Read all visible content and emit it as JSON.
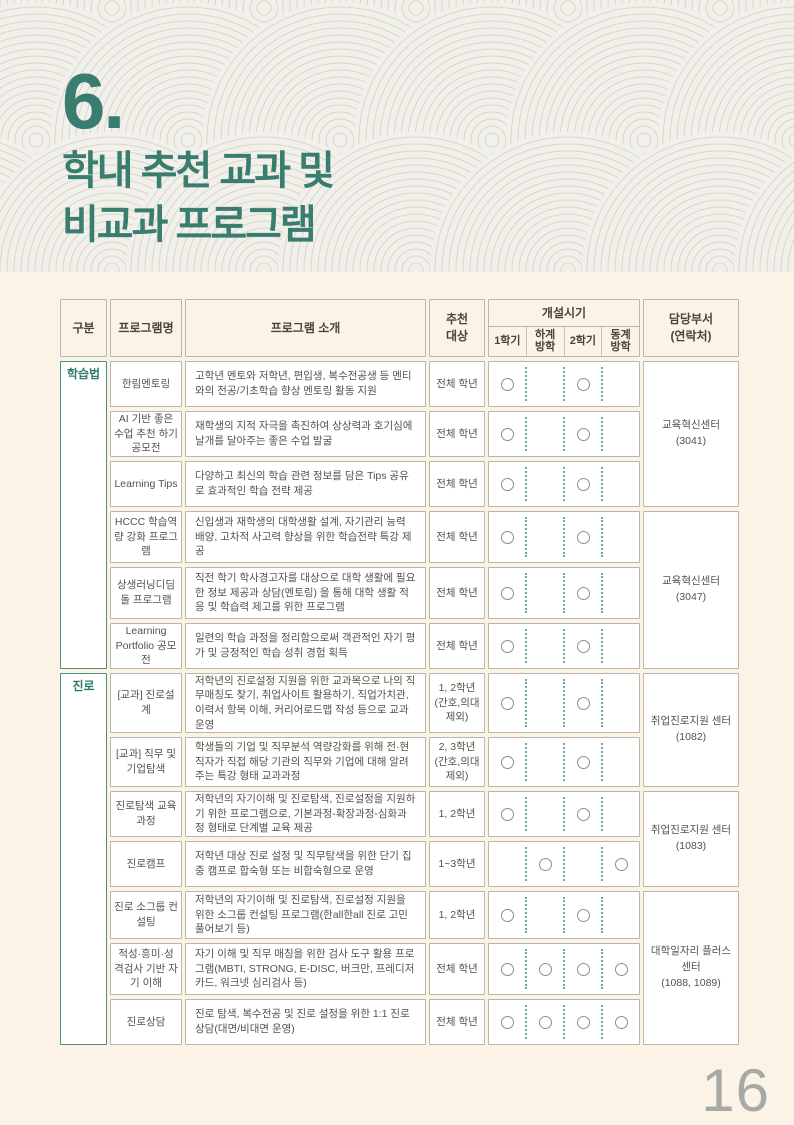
{
  "theme": {
    "accent_teal": "#387D70",
    "page_background": "#FAF3E6",
    "pattern_background": "#F2F0EA",
    "cell_border": "#BAB6AC",
    "dotted_separator": "#6AAB9D",
    "circle_outline": "#8F8F89",
    "page_number_color": "#A6A9A6"
  },
  "header": {
    "section_number": "6.",
    "title_line1": "학내 추천 교과 및",
    "title_line2": "비교과 프로그램"
  },
  "table": {
    "headers": {
      "category": "구분",
      "program_name": "프로그램명",
      "program_intro": "프로그램 소개",
      "target": "추천 대상",
      "schedule": "개설시기",
      "schedule_cols": [
        "1학기",
        "하계 방학",
        "2학기",
        "동계 방학"
      ],
      "department": "담당부서 (연락처)"
    },
    "categories": [
      {
        "label": "학습법"
      },
      {
        "label": "진로"
      }
    ],
    "rows": [
      {
        "name": "한림멘토링",
        "intro": "고학년 멘토와 저학년, 편입생, 복수전공생 등 멘티와의 전공/기초학습 향상 멘토링 활동 지원",
        "target": "전체 학년",
        "schedule": [
          true,
          false,
          true,
          false
        ]
      },
      {
        "name": "AI 기반 좋은 수업 추천 하기 공모전",
        "intro": "재학생의 지적 자극을 촉진하여 상상력과 호기심에 날개를 달아주는 좋은 수업 발굴",
        "target": "전체 학년",
        "schedule": [
          true,
          false,
          true,
          false
        ]
      },
      {
        "name": "Learning Tips",
        "intro": "다양하고 최신의 학습 관련 정보를 담은 Tips 공유로 효과적인 학습 전략 제공",
        "target": "전체 학년",
        "schedule": [
          true,
          false,
          true,
          false
        ]
      },
      {
        "name": "HCCC 학습역량 강화 프로그램",
        "intro": "신입생과 재학생의 대학생활 설계, 자기관리 능력 배양, 고차적 사고력 향상을 위한 학습전략 특강 제공",
        "target": "전체 학년",
        "schedule": [
          true,
          false,
          true,
          false
        ]
      },
      {
        "name": "상생러닝디딤돌 프로그램",
        "intro": "직전 학기 학사경고자를 대상으로 대학 생활에 필요한 정보 제공과 상담(멘토링) 을 통해 대학 생활 적응 및 학습력 제고를 위한 프로그램",
        "target": "전체 학년",
        "schedule": [
          true,
          false,
          true,
          false
        ]
      },
      {
        "name": "Learning Portfolio 공모전",
        "intro": "일련의 학습 과정을 정리함으로써 객관적인 자기 평가 및 긍정적인 학습 성취 경험 획득",
        "target": "전체 학년",
        "schedule": [
          true,
          false,
          true,
          false
        ]
      },
      {
        "name": "[교과] 진로설계",
        "intro": "저학년의 진로설정 지원을 위한 교과목으로 나의 직무매칭도 찾기, 취업사이트 활용하기, 직업가치관, 이력서 항목 이해, 커리어로드맵 작성 등으로 교과 운영",
        "target": "1, 2학년 (간호,의대 제외)",
        "schedule": [
          true,
          false,
          true,
          false
        ]
      },
      {
        "name": "[교과] 직무 및 기업탐색",
        "intro": "학생들의 기업 및 직무분석 역량강화를 위해 전·현직자가 직접 해당 기관의 직무와 기업에 대해 알려주는 특강 형태 교과과정",
        "target": "2, 3학년 (간호,의대 제외)",
        "schedule": [
          true,
          false,
          true,
          false
        ]
      },
      {
        "name": "진로탐색 교육과정",
        "intro": "저학년의 자기이해 및 진로탐색, 진로설정을 지원하기 위한 프로그램으로, 기본과정-확장과정-심화과정 형태로 단계별 교육 제공",
        "target": "1, 2학년",
        "schedule": [
          true,
          false,
          true,
          false
        ]
      },
      {
        "name": "진로캠프",
        "intro": "저학년 대상 진로 설정 및 직무탐색을 위한 단기 집중 캠프로 합숙형 또는 비합숙형으로 운영",
        "target": "1~3학년",
        "schedule": [
          false,
          true,
          false,
          true
        ]
      },
      {
        "name": "진로 소그룹 컨설팅",
        "intro": "저학년의 자기이해 및 진로탐색, 진로설정 지원을 위한 소그룹 컨설팅 프로그램(한all한all 진로 고민 풀어보기 등)",
        "target": "1, 2학년",
        "schedule": [
          true,
          false,
          true,
          false
        ]
      },
      {
        "name": "적성·흥미·성격검사 기반 자기 이해",
        "intro": "자기 이해 및 직무 매칭을 위한 검사 도구 활용 프로그램(MBTI, STRONG, E-DISC, 버크만, 프레디저 카드, 워크넷 심리검사 등)",
        "target": "전체 학년",
        "schedule": [
          true,
          true,
          true,
          true
        ]
      },
      {
        "name": "진로상담",
        "intro": "진로 탐색, 복수전공 및 진로 설정을 위한 1:1 진로상담(대면/비대면 운영)",
        "target": "전체 학년",
        "schedule": [
          true,
          true,
          true,
          true
        ]
      }
    ],
    "departments": [
      {
        "name": "교육혁신센터",
        "contact": "(3041)"
      },
      {
        "name": "교육혁신센터",
        "contact": "(3047)"
      },
      {
        "name": "취업진로지원 센터",
        "contact": "(1082)"
      },
      {
        "name": "취업진로지원 센터",
        "contact": "(1083)"
      },
      {
        "name": "대학일자리 플러스 센터",
        "contact": "(1088, 1089)"
      }
    ]
  },
  "footer": {
    "page_number": "16"
  }
}
